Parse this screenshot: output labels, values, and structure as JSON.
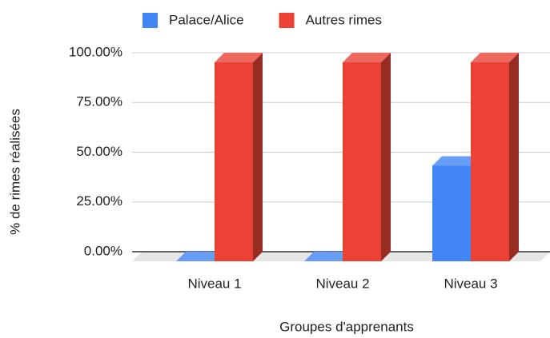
{
  "chart_data": {
    "type": "bar3d",
    "categories": [
      "Niveau 1",
      "Niveau 2",
      "Niveau 3"
    ],
    "series": [
      {
        "name": "Palace/Alice",
        "color": "#4285f4",
        "values": [
          0,
          0,
          48
        ]
      },
      {
        "name": "Autres rimes",
        "color": "#ea4335",
        "values": [
          100,
          100,
          100
        ]
      }
    ],
    "ylim": [
      0,
      100
    ],
    "yticks": [
      {
        "value": 0,
        "label": "0.00%"
      },
      {
        "value": 25,
        "label": "25.00%"
      },
      {
        "value": 50,
        "label": "50.00%"
      },
      {
        "value": 75,
        "label": "75.00%"
      },
      {
        "value": 100,
        "label": "100.00%"
      }
    ],
    "ylabel": "% de rimes réalisées",
    "xlabel": "Groupes d'apprenants",
    "legend": "top",
    "grid": true
  }
}
